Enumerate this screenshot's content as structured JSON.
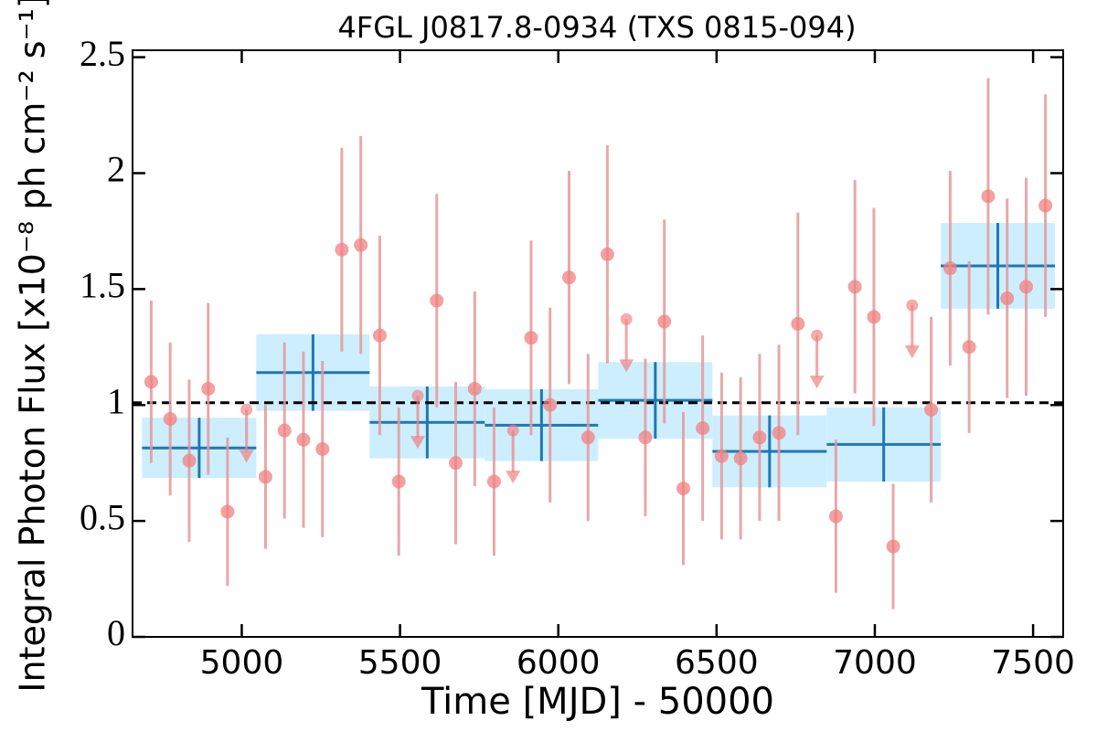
{
  "chart_data": {
    "type": "scatter",
    "title": "4FGL J0817.8-0934 (TXS 0815-094)",
    "x_label": "Time [MJD] - 50000",
    "y_label": "Integral Photon Flux [x10⁻⁸ ph cm⁻² s⁻¹]",
    "xlim": [
      4655,
      7595
    ],
    "ylim": [
      0,
      2.53
    ],
    "xticks": [
      5000,
      5500,
      6000,
      6500,
      7000,
      7500
    ],
    "yticks": [
      0,
      0.5,
      1,
      1.5,
      2,
      2.5
    ],
    "mean_line": 1.01,
    "points": {
      "color": "#f08080",
      "error_color": "#e59a9a",
      "x": [
        4714,
        4774,
        4834,
        4894,
        4955,
        5075,
        5135,
        5195,
        5255,
        5316,
        5376,
        5436,
        5496,
        5616,
        5676,
        5736,
        5797,
        5914,
        5974,
        6034,
        6094,
        6155,
        6275,
        6335,
        6395,
        6456,
        6516,
        6576,
        6636,
        6697,
        6757,
        6877,
        6937,
        6997,
        7058,
        7178,
        7238,
        7298,
        7358,
        7418,
        7478,
        7539
      ],
      "values": [
        1.1,
        0.94,
        0.76,
        1.07,
        0.54,
        0.69,
        0.89,
        0.85,
        0.81,
        1.67,
        1.69,
        1.3,
        0.67,
        1.45,
        0.75,
        1.07,
        0.67,
        1.29,
        1.0,
        1.55,
        0.86,
        1.65,
        0.86,
        1.36,
        0.64,
        0.9,
        0.78,
        0.77,
        0.86,
        0.88,
        1.35,
        0.52,
        1.51,
        1.38,
        0.39,
        0.98,
        1.59,
        1.25,
        1.9,
        1.46,
        1.51,
        1.86
      ],
      "errors": [
        0.35,
        0.33,
        0.35,
        0.37,
        0.32,
        0.31,
        0.38,
        0.38,
        0.38,
        0.44,
        0.47,
        0.43,
        0.32,
        0.46,
        0.35,
        0.42,
        0.32,
        0.42,
        0.42,
        0.46,
        0.36,
        0.47,
        0.34,
        0.44,
        0.33,
        0.4,
        0.36,
        0.35,
        0.36,
        0.38,
        0.48,
        0.33,
        0.46,
        0.47,
        0.27,
        0.4,
        0.42,
        0.37,
        0.51,
        0.43,
        0.47,
        0.48
      ]
    },
    "upper_limits": {
      "color": "#f08080",
      "x": [
        5015,
        5556,
        5857,
        6215,
        6817,
        7118
      ],
      "values": [
        0.98,
        1.04,
        0.89,
        1.37,
        1.3,
        1.43
      ]
    },
    "blocks": {
      "color": "#1f77b4",
      "band_color": "#cdeeff",
      "edges": [
        4685,
        5046,
        5404,
        5768,
        6126,
        6487,
        6848,
        7208,
        7569
      ],
      "values": [
        0.815,
        1.14,
        0.925,
        0.913,
        1.02,
        0.8,
        0.83,
        1.6
      ],
      "errors": [
        0.13,
        0.165,
        0.155,
        0.155,
        0.165,
        0.155,
        0.16,
        0.185
      ]
    }
  }
}
